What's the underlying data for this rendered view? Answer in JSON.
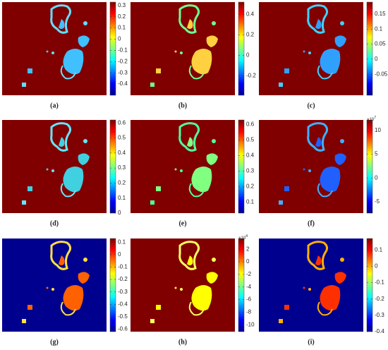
{
  "panels": [
    {
      "label": "(a)",
      "background": "#800000",
      "cbar_lim": [
        -0.5,
        0.33
      ],
      "cbar_ticks": [
        0.3,
        0.2,
        0.1,
        0,
        -0.1,
        -0.2,
        -0.3,
        -0.4
      ]
    },
    {
      "label": "(b)",
      "background": "#800000",
      "cbar_lim": [
        -0.39,
        0.52
      ],
      "cbar_ticks": [
        0.4,
        0.2,
        0,
        -0.2
      ]
    },
    {
      "label": "(c)",
      "background": "#800000",
      "cbar_lim": [
        -0.12,
        0.19
      ],
      "cbar_ticks": [
        0.15,
        0.1,
        0.05,
        0,
        -0.05
      ]
    },
    {
      "label": "(d)",
      "background": "#800000",
      "cbar_lim": [
        0,
        0.62
      ],
      "cbar_ticks": [
        0.6,
        0.5,
        0.4,
        0.3,
        0.2,
        0.1,
        0
      ]
    },
    {
      "label": "(e)",
      "background": "#800000",
      "cbar_lim": [
        0.03,
        0.63
      ],
      "cbar_ticks": [
        0.6,
        0.5,
        0.4,
        0.3,
        0.2,
        0.1
      ]
    },
    {
      "label": "(f)",
      "background": "#800000",
      "cbar_lim": [
        -7.4,
        12.2
      ],
      "cbar_ticks": [
        10,
        5,
        0,
        -5
      ],
      "exponent": {
        "base": "×10",
        "power": "7"
      }
    },
    {
      "label": "(g)",
      "background": "#00008f",
      "cbar_lim": [
        -0.62,
        0.13
      ],
      "cbar_ticks": [
        0.1,
        0,
        -0.1,
        -0.2,
        -0.3,
        -0.4,
        -0.5,
        -0.6
      ]
    },
    {
      "label": "(h)",
      "background": "#800000",
      "cbar_lim": [
        -11.1,
        3.7
      ],
      "cbar_ticks": [
        2,
        0,
        -2,
        -4,
        -6,
        -8,
        -10
      ],
      "exponent": {
        "base": "×10",
        "power": "4"
      }
    },
    {
      "label": "(i)",
      "background": "#00008f",
      "cbar_lim": [
        -0.4,
        0.17
      ],
      "cbar_ticks": [
        0.1,
        0,
        -0.1,
        -0.2,
        -0.3,
        -0.4
      ]
    }
  ]
}
